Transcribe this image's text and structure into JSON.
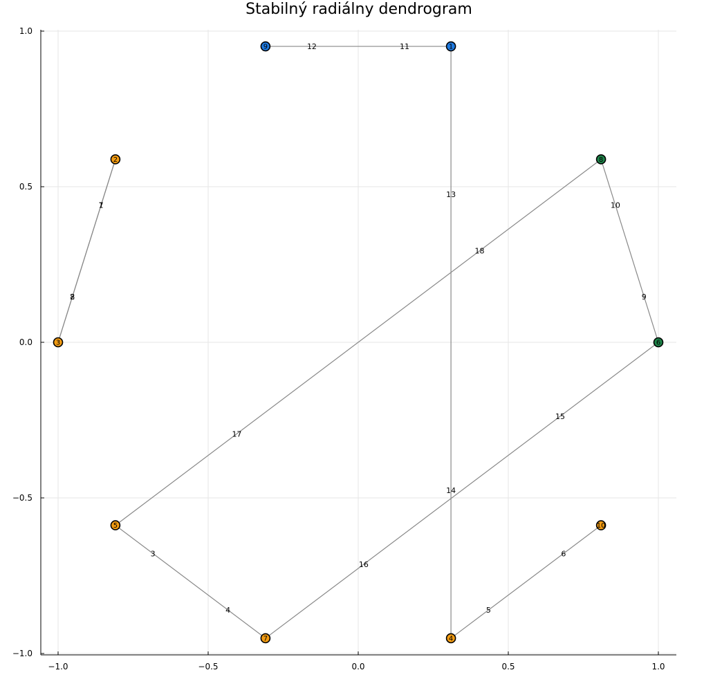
{
  "chart_data": {
    "type": "graph",
    "title": "Stabilný radiálny dendrogram",
    "xlim": [
      -1.0,
      1.0
    ],
    "ylim": [
      -1.0,
      1.0
    ],
    "x_ticks": [
      {
        "value": -1.0,
        "label": "−1.0"
      },
      {
        "value": -0.5,
        "label": "−0.5"
      },
      {
        "value": 0.0,
        "label": "0.0"
      },
      {
        "value": 0.5,
        "label": "0.5"
      },
      {
        "value": 1.0,
        "label": "1.0"
      }
    ],
    "y_ticks": [
      {
        "value": -1.0,
        "label": "−1.0"
      },
      {
        "value": -0.5,
        "label": "−0.5"
      },
      {
        "value": 0.0,
        "label": "0.0"
      },
      {
        "value": 0.5,
        "label": "0.5"
      },
      {
        "value": 1.0,
        "label": "1.0"
      }
    ],
    "grid": true,
    "colors": {
      "blue": "#1f7ae0",
      "orange": "#f39c12",
      "green": "#1e8449",
      "edge": "#888888"
    },
    "nodes": [
      {
        "id": "1",
        "x": 0.309,
        "y": 0.951,
        "color": "blue"
      },
      {
        "id": "9",
        "x": -0.309,
        "y": 0.951,
        "color": "blue"
      },
      {
        "id": "2",
        "x": -0.809,
        "y": 0.588,
        "color": "orange"
      },
      {
        "id": "8",
        "x": 0.809,
        "y": 0.588,
        "color": "green"
      },
      {
        "id": "3",
        "x": -1.0,
        "y": 0.0,
        "color": "orange"
      },
      {
        "id": "6",
        "x": 1.0,
        "y": 0.0,
        "color": "green"
      },
      {
        "id": "5",
        "x": -0.809,
        "y": -0.588,
        "color": "orange"
      },
      {
        "id": "10",
        "x": 0.809,
        "y": -0.588,
        "color": "orange"
      },
      {
        "id": "7",
        "x": -0.309,
        "y": -0.951,
        "color": "orange"
      },
      {
        "id": "4",
        "x": 0.309,
        "y": -0.951,
        "color": "orange"
      }
    ],
    "edges": [
      {
        "from": "2",
        "to": "3",
        "labels": [
          {
            "text": "1",
            "t": 0.25
          },
          {
            "text": "2",
            "t": 0.75
          }
        ]
      },
      {
        "from": "3",
        "to": "2",
        "labels": [
          {
            "text": "8",
            "t": 0.25
          },
          {
            "text": "7",
            "t": 0.75
          }
        ]
      },
      {
        "from": "5",
        "to": "7",
        "labels": [
          {
            "text": "3",
            "t": 0.25
          },
          {
            "text": "4",
            "t": 0.75
          }
        ]
      },
      {
        "from": "4",
        "to": "10",
        "labels": [
          {
            "text": "5",
            "t": 0.25
          },
          {
            "text": "6",
            "t": 0.75
          }
        ]
      },
      {
        "from": "6",
        "to": "8",
        "labels": [
          {
            "text": "9",
            "t": 0.25
          },
          {
            "text": "10",
            "t": 0.75
          }
        ]
      },
      {
        "from": "1",
        "to": "9",
        "labels": [
          {
            "text": "11",
            "t": 0.25
          },
          {
            "text": "12",
            "t": 0.75
          }
        ]
      },
      {
        "from": "1",
        "to": "4",
        "labels": [
          {
            "text": "13",
            "t": 0.25
          },
          {
            "text": "14",
            "t": 0.75
          }
        ]
      },
      {
        "from": "6",
        "to": "7",
        "labels": [
          {
            "text": "15",
            "t": 0.25
          },
          {
            "text": "16",
            "t": 0.75
          }
        ]
      },
      {
        "from": "5",
        "to": "8",
        "labels": [
          {
            "text": "17",
            "t": 0.25
          },
          {
            "text": "18",
            "t": 0.75
          }
        ]
      }
    ]
  }
}
